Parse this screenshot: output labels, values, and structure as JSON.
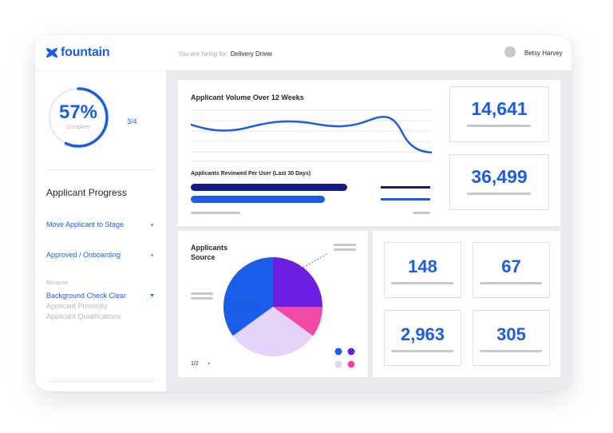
{
  "header": {
    "brand": "fountain",
    "hiring_prefix": "You are hiring for:",
    "hiring_role": "Delivery Driver",
    "user_name": "Betsy Harvey"
  },
  "progress": {
    "percent_label": "57%",
    "percent_value": 0.57,
    "caption": "Complete",
    "steps": "3/4"
  },
  "sidebar": {
    "section_title": "Applicant Progress",
    "move_stage_label": "Move Applicant to Stage",
    "stage_value": "Approved / Onboarding",
    "reason_caption": "Because",
    "reason_selected": "Background Check Clear",
    "reason_options": [
      "Applicant Proximity",
      "Applicant Qualifications"
    ]
  },
  "volume_panel": {
    "title": "Applicant Volume Over 12 Weeks",
    "reviewed_title": "Applicants Reviewed Per User (Last 30 Days)",
    "reviewed_values": [
      1.0,
      0.85
    ]
  },
  "stats": {
    "top": [
      "14,641",
      "36,499"
    ],
    "grid": [
      "148",
      "67",
      "2,963",
      "305"
    ]
  },
  "source_panel": {
    "title_line1": "Applicants",
    "title_line2": "Source",
    "pager": "1/2"
  },
  "chart_data": {
    "type": "pie",
    "title": "Applicants Source",
    "slices": [
      {
        "value": 25,
        "color": "#6c1fe0"
      },
      {
        "value": 10,
        "color": "#f04aa6"
      },
      {
        "value": 30,
        "color": "#e5d3fa"
      },
      {
        "value": 35,
        "color": "#1a5dea"
      }
    ]
  },
  "colors": {
    "accent": "#1a5dea",
    "navy": "#141b86",
    "purple": "#6c1fe0",
    "pink": "#f04aa6",
    "lavender": "#e5d3fa"
  }
}
